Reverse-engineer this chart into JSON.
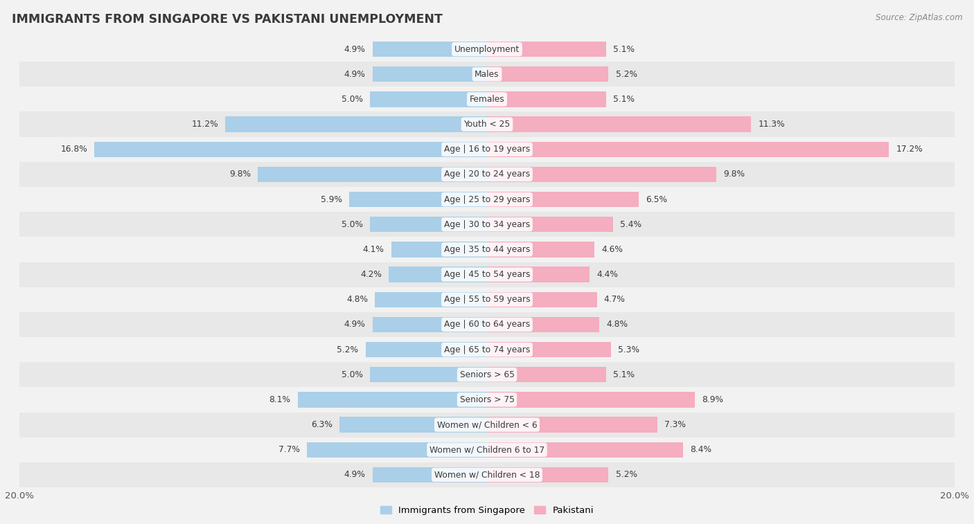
{
  "title": "IMMIGRANTS FROM SINGAPORE VS PAKISTANI UNEMPLOYMENT",
  "source": "Source: ZipAtlas.com",
  "categories": [
    "Unemployment",
    "Males",
    "Females",
    "Youth < 25",
    "Age | 16 to 19 years",
    "Age | 20 to 24 years",
    "Age | 25 to 29 years",
    "Age | 30 to 34 years",
    "Age | 35 to 44 years",
    "Age | 45 to 54 years",
    "Age | 55 to 59 years",
    "Age | 60 to 64 years",
    "Age | 65 to 74 years",
    "Seniors > 65",
    "Seniors > 75",
    "Women w/ Children < 6",
    "Women w/ Children 6 to 17",
    "Women w/ Children < 18"
  ],
  "singapore_values": [
    4.9,
    4.9,
    5.0,
    11.2,
    16.8,
    9.8,
    5.9,
    5.0,
    4.1,
    4.2,
    4.8,
    4.9,
    5.2,
    5.0,
    8.1,
    6.3,
    7.7,
    4.9
  ],
  "pakistani_values": [
    5.1,
    5.2,
    5.1,
    11.3,
    17.2,
    9.8,
    6.5,
    5.4,
    4.6,
    4.4,
    4.7,
    4.8,
    5.3,
    5.1,
    8.9,
    7.3,
    8.4,
    5.2
  ],
  "singapore_color": "#aacfe8",
  "pakistani_color": "#f5adc0",
  "singapore_label": "Immigrants from Singapore",
  "pakistani_label": "Pakistani",
  "xlim": 20.0,
  "bar_height": 0.62,
  "title_color": "#3a3a3a",
  "source_color": "#888888",
  "value_color": "#3a3a3a",
  "label_color": "#3a3a3a",
  "row_colors": [
    "#f2f2f2",
    "#e8e8e8"
  ],
  "fig_bg": "#f2f2f2"
}
